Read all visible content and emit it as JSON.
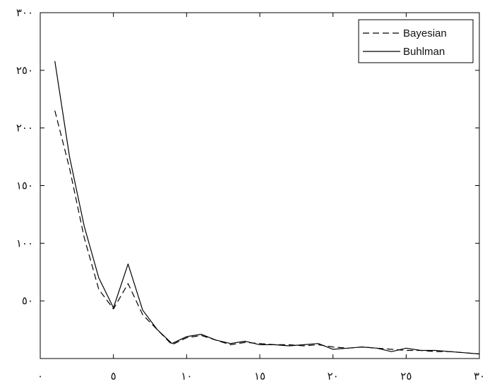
{
  "chart_data": {
    "type": "line",
    "title": "",
    "xlabel": "",
    "ylabel": "",
    "xlim": [
      0,
      30
    ],
    "ylim": [
      0,
      300
    ],
    "x_ticks": [
      0,
      5,
      10,
      15,
      20,
      25,
      30
    ],
    "x_tick_labels": [
      "٠",
      "٥",
      "١٠",
      "١٥",
      "٢٠",
      "٢٥",
      "٣٠"
    ],
    "y_ticks": [
      50,
      100,
      150,
      200,
      250,
      300
    ],
    "y_tick_labels": [
      "٥٠",
      "١٠٠",
      "١٥٠",
      "٢٠٠",
      "٢٥٠",
      "٣٠٠"
    ],
    "grid": false,
    "legend": "top-right",
    "series": [
      {
        "name": "Bayesian",
        "style": "dashed",
        "color": "#000000",
        "x": [
          1,
          2,
          3,
          4,
          5,
          6,
          7,
          8,
          9,
          10,
          11,
          12,
          13,
          14,
          15,
          16,
          17,
          18,
          19,
          20,
          21,
          22,
          23,
          24,
          25,
          26,
          27,
          28,
          29,
          30
        ],
        "y": [
          215,
          165,
          105,
          60,
          43,
          65,
          38,
          25,
          12,
          18,
          20,
          16,
          12,
          14,
          13,
          12,
          12,
          11,
          12,
          10,
          9,
          10,
          9,
          8,
          7,
          7,
          6,
          6,
          5,
          4
        ]
      },
      {
        "name": "Buhlman",
        "style": "solid",
        "color": "#000000",
        "x": [
          1,
          2,
          3,
          4,
          5,
          6,
          7,
          8,
          9,
          10,
          11,
          12,
          13,
          14,
          15,
          16,
          17,
          18,
          19,
          20,
          21,
          22,
          23,
          24,
          25,
          26,
          27,
          28,
          29,
          30
        ],
        "y": [
          258,
          175,
          115,
          70,
          44,
          82,
          42,
          25,
          13,
          19,
          21,
          16,
          13,
          15,
          12,
          12,
          11,
          12,
          13,
          8,
          9,
          10,
          9,
          6,
          9,
          7,
          7,
          6,
          5,
          4
        ]
      }
    ]
  }
}
